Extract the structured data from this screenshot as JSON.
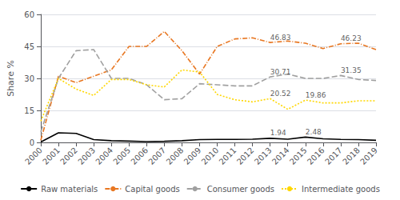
{
  "chart_data": {
    "type": "line",
    "x": [
      2000,
      2001,
      2002,
      2003,
      2004,
      2005,
      2006,
      2007,
      2008,
      2009,
      2010,
      2011,
      2012,
      2013,
      2014,
      2015,
      2016,
      2017,
      2018,
      2019
    ],
    "series": [
      {
        "name": "Raw materials",
        "color": "#000000",
        "line_style": "solid",
        "values": [
          0.2,
          4.5,
          4.2,
          1.3,
          0.8,
          0.6,
          0.4,
          0.5,
          0.8,
          1.3,
          1.4,
          1.4,
          1.5,
          1.94,
          1.5,
          2.48,
          1.7,
          1.4,
          1.3,
          1.0
        ]
      },
      {
        "name": "Capital goods",
        "color": "#E87722",
        "line_style": "dashdot",
        "values": [
          1.0,
          31.0,
          28.0,
          31.0,
          34.0,
          45.0,
          45.0,
          52.0,
          43.0,
          32.0,
          45.0,
          48.5,
          49.0,
          46.83,
          47.5,
          46.5,
          44.0,
          46.23,
          46.5,
          43.5
        ]
      },
      {
        "name": "Consumer goods",
        "color": "#A0A0A0",
        "line_style": "dashed",
        "values": [
          5.0,
          30.0,
          43.0,
          43.5,
          30.0,
          30.0,
          27.0,
          20.0,
          20.5,
          27.5,
          27.0,
          26.5,
          26.5,
          30.71,
          32.0,
          30.0,
          30.0,
          31.35,
          29.5,
          29.0
        ]
      },
      {
        "name": "Intermediate goods",
        "color": "#FFD700",
        "line_style": "dotted",
        "values": [
          10.0,
          30.0,
          25.0,
          22.0,
          29.5,
          29.5,
          27.0,
          26.0,
          34.0,
          33.0,
          22.5,
          20.0,
          19.0,
          20.52,
          15.5,
          19.86,
          18.5,
          18.5,
          19.5,
          19.5
        ]
      }
    ],
    "annotations": [
      {
        "x": 2013,
        "y": 1.94,
        "label": "1.94"
      },
      {
        "x": 2015,
        "y": 2.48,
        "label": "2.48"
      },
      {
        "x": 2013,
        "y": 46.83,
        "label": "46.83"
      },
      {
        "x": 2017,
        "y": 46.23,
        "label": "46.23"
      },
      {
        "x": 2013,
        "y": 30.71,
        "label": "30.71"
      },
      {
        "x": 2017,
        "y": 31.35,
        "label": "31.35"
      },
      {
        "x": 2013,
        "y": 20.52,
        "label": "20.52"
      },
      {
        "x": 2015,
        "y": 19.86,
        "label": "19.86"
      }
    ],
    "ylabel": "Share %",
    "xlim": [
      2000,
      2019
    ],
    "xticks": [
      2000,
      2001,
      2002,
      2003,
      2004,
      2005,
      2006,
      2007,
      2008,
      2009,
      2010,
      2011,
      2012,
      2013,
      2014,
      2015,
      2016,
      2017,
      2018,
      2019
    ],
    "ylim": [
      0,
      60
    ],
    "yticks": [
      0,
      15,
      30,
      45,
      60
    ],
    "grid": true,
    "legend": "bottom"
  }
}
